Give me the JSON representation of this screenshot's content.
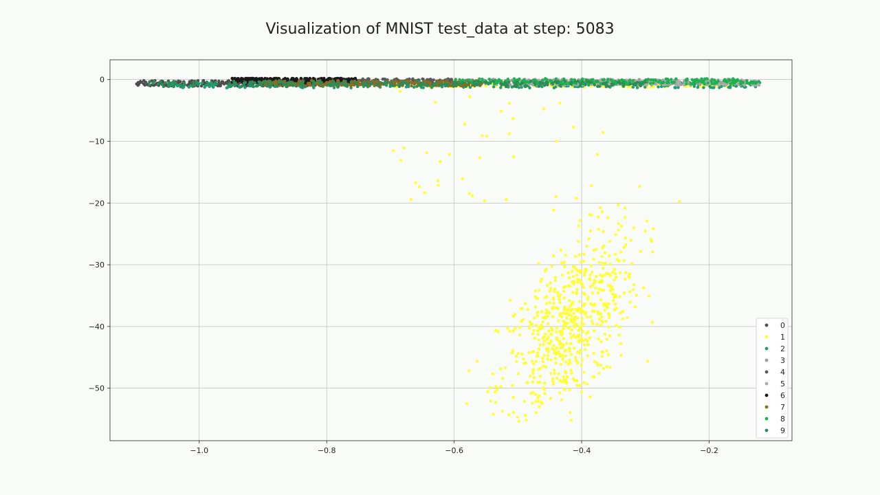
{
  "chart_data": {
    "type": "scatter",
    "title": "Visualization of MNIST test_data at step: 5083",
    "xlabel": "",
    "ylabel": "",
    "xlim": [
      -1.14,
      -0.07
    ],
    "ylim": [
      -58.5,
      3.2
    ],
    "x_ticks": [
      -1.0,
      -0.8,
      -0.6,
      -0.4,
      -0.2
    ],
    "x_tick_labels": [
      "−1.0",
      "−0.8",
      "−0.6",
      "−0.4",
      "−0.2"
    ],
    "y_ticks": [
      0,
      -10,
      -20,
      -30,
      -40,
      -50
    ],
    "y_tick_labels": [
      "0",
      "−10",
      "−20",
      "−30",
      "−40",
      "−50"
    ],
    "grid": true,
    "legend_position": "bottom-right",
    "series": [
      {
        "name": "0",
        "color": "#4d4d4d",
        "band": {
          "x": [
            -1.1,
            -0.8
          ],
          "y": -0.6
        }
      },
      {
        "name": "1",
        "color": "#ffff33",
        "band": {
          "x": [
            -0.7,
            -0.15
          ],
          "y": -0.8
        },
        "cluster": {
          "center": [
            -0.42,
            -40
          ],
          "spread": [
            0.055,
            8.0
          ]
        }
      },
      {
        "name": "2",
        "color": "#1f9e6e",
        "band": {
          "x": [
            -1.05,
            -0.12
          ],
          "y": -0.9
        }
      },
      {
        "name": "3",
        "color": "#9e9e9e",
        "band": {
          "x": [
            -0.6,
            -0.15
          ],
          "y": -0.4
        }
      },
      {
        "name": "4",
        "color": "#5a5a5a",
        "band": {
          "x": [
            -0.95,
            -0.6
          ],
          "y": -0.3
        }
      },
      {
        "name": "5",
        "color": "#aaaaaa",
        "band": {
          "x": [
            -0.5,
            -0.12
          ],
          "y": -0.5
        }
      },
      {
        "name": "6",
        "color": "#1a1a1a",
        "band": {
          "x": [
            -0.95,
            -0.75
          ],
          "y": -0.2
        }
      },
      {
        "name": "7",
        "color": "#8a6d1e",
        "band": {
          "x": [
            -0.9,
            -0.55
          ],
          "y": -0.6
        }
      },
      {
        "name": "8",
        "color": "#1fb050",
        "band": {
          "x": [
            -0.6,
            -0.12
          ],
          "y": -0.3
        }
      },
      {
        "name": "9",
        "color": "#2e8b57",
        "band": {
          "x": [
            -1.08,
            -0.3
          ],
          "y": -0.7
        }
      }
    ]
  }
}
